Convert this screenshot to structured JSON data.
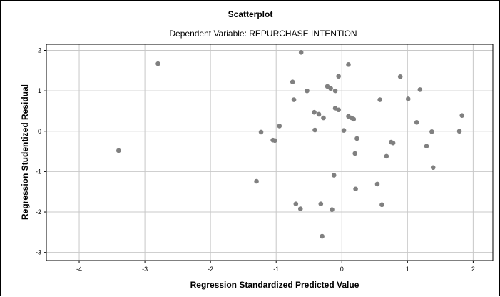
{
  "chart_data": {
    "type": "scatter",
    "title": "Scatterplot",
    "subtitle": "Dependent Variable: REPURCHASE INTENTION",
    "xlabel": "Regression Standardized Predicted Value",
    "ylabel": "Regression Studentized Residual",
    "xlim": [
      -4.5,
      2.3
    ],
    "ylim": [
      -3.2,
      2.15
    ],
    "xticks": [
      -4,
      -3,
      -2,
      -1,
      0,
      1,
      2
    ],
    "yticks": [
      2,
      1,
      0,
      -1,
      -2,
      -3
    ],
    "xtick_labels": [
      "-4",
      "-3",
      "-2",
      "-1",
      "0",
      "1",
      "2"
    ],
    "ytick_labels": [
      "2",
      "1",
      "0",
      "-1",
      "-2",
      "-3"
    ],
    "grid": true,
    "point_color": "#808080",
    "points": [
      {
        "x": -3.4,
        "y": -0.48
      },
      {
        "x": -2.8,
        "y": 1.67
      },
      {
        "x": -1.3,
        "y": -1.24
      },
      {
        "x": -1.23,
        "y": -0.02
      },
      {
        "x": -1.05,
        "y": -0.22
      },
      {
        "x": -1.02,
        "y": -0.23
      },
      {
        "x": -0.95,
        "y": 0.13
      },
      {
        "x": -0.75,
        "y": 1.22
      },
      {
        "x": -0.73,
        "y": 0.78
      },
      {
        "x": -0.7,
        "y": -1.8
      },
      {
        "x": -0.63,
        "y": -1.92
      },
      {
        "x": -0.62,
        "y": 1.95
      },
      {
        "x": -0.53,
        "y": 1.0
      },
      {
        "x": -0.42,
        "y": 0.47
      },
      {
        "x": -0.41,
        "y": 0.03
      },
      {
        "x": -0.35,
        "y": 0.42
      },
      {
        "x": -0.32,
        "y": -1.8
      },
      {
        "x": -0.3,
        "y": -2.6
      },
      {
        "x": -0.28,
        "y": 0.33
      },
      {
        "x": -0.22,
        "y": 1.11
      },
      {
        "x": -0.17,
        "y": 1.06
      },
      {
        "x": -0.15,
        "y": -1.94
      },
      {
        "x": -0.12,
        "y": -1.09
      },
      {
        "x": -0.1,
        "y": 0.57
      },
      {
        "x": -0.1,
        "y": 1.0
      },
      {
        "x": -0.05,
        "y": 1.36
      },
      {
        "x": -0.05,
        "y": 0.53
      },
      {
        "x": 0.03,
        "y": 0.02
      },
      {
        "x": 0.1,
        "y": 1.65
      },
      {
        "x": 0.1,
        "y": 0.37
      },
      {
        "x": 0.15,
        "y": 0.33
      },
      {
        "x": 0.18,
        "y": 0.3
      },
      {
        "x": 0.2,
        "y": -0.55
      },
      {
        "x": 0.21,
        "y": -1.43
      },
      {
        "x": 0.23,
        "y": -0.18
      },
      {
        "x": 0.54,
        "y": -1.31
      },
      {
        "x": 0.58,
        "y": 0.78
      },
      {
        "x": 0.61,
        "y": -1.82
      },
      {
        "x": 0.68,
        "y": -0.62
      },
      {
        "x": 0.75,
        "y": -0.27
      },
      {
        "x": 0.78,
        "y": -0.29
      },
      {
        "x": 0.89,
        "y": 1.35
      },
      {
        "x": 1.01,
        "y": 0.8
      },
      {
        "x": 1.14,
        "y": 0.22
      },
      {
        "x": 1.19,
        "y": 1.03
      },
      {
        "x": 1.29,
        "y": -0.37
      },
      {
        "x": 1.37,
        "y": -0.01
      },
      {
        "x": 1.39,
        "y": -0.9
      },
      {
        "x": 1.79,
        "y": 0.0
      },
      {
        "x": 1.83,
        "y": 0.39
      }
    ]
  }
}
